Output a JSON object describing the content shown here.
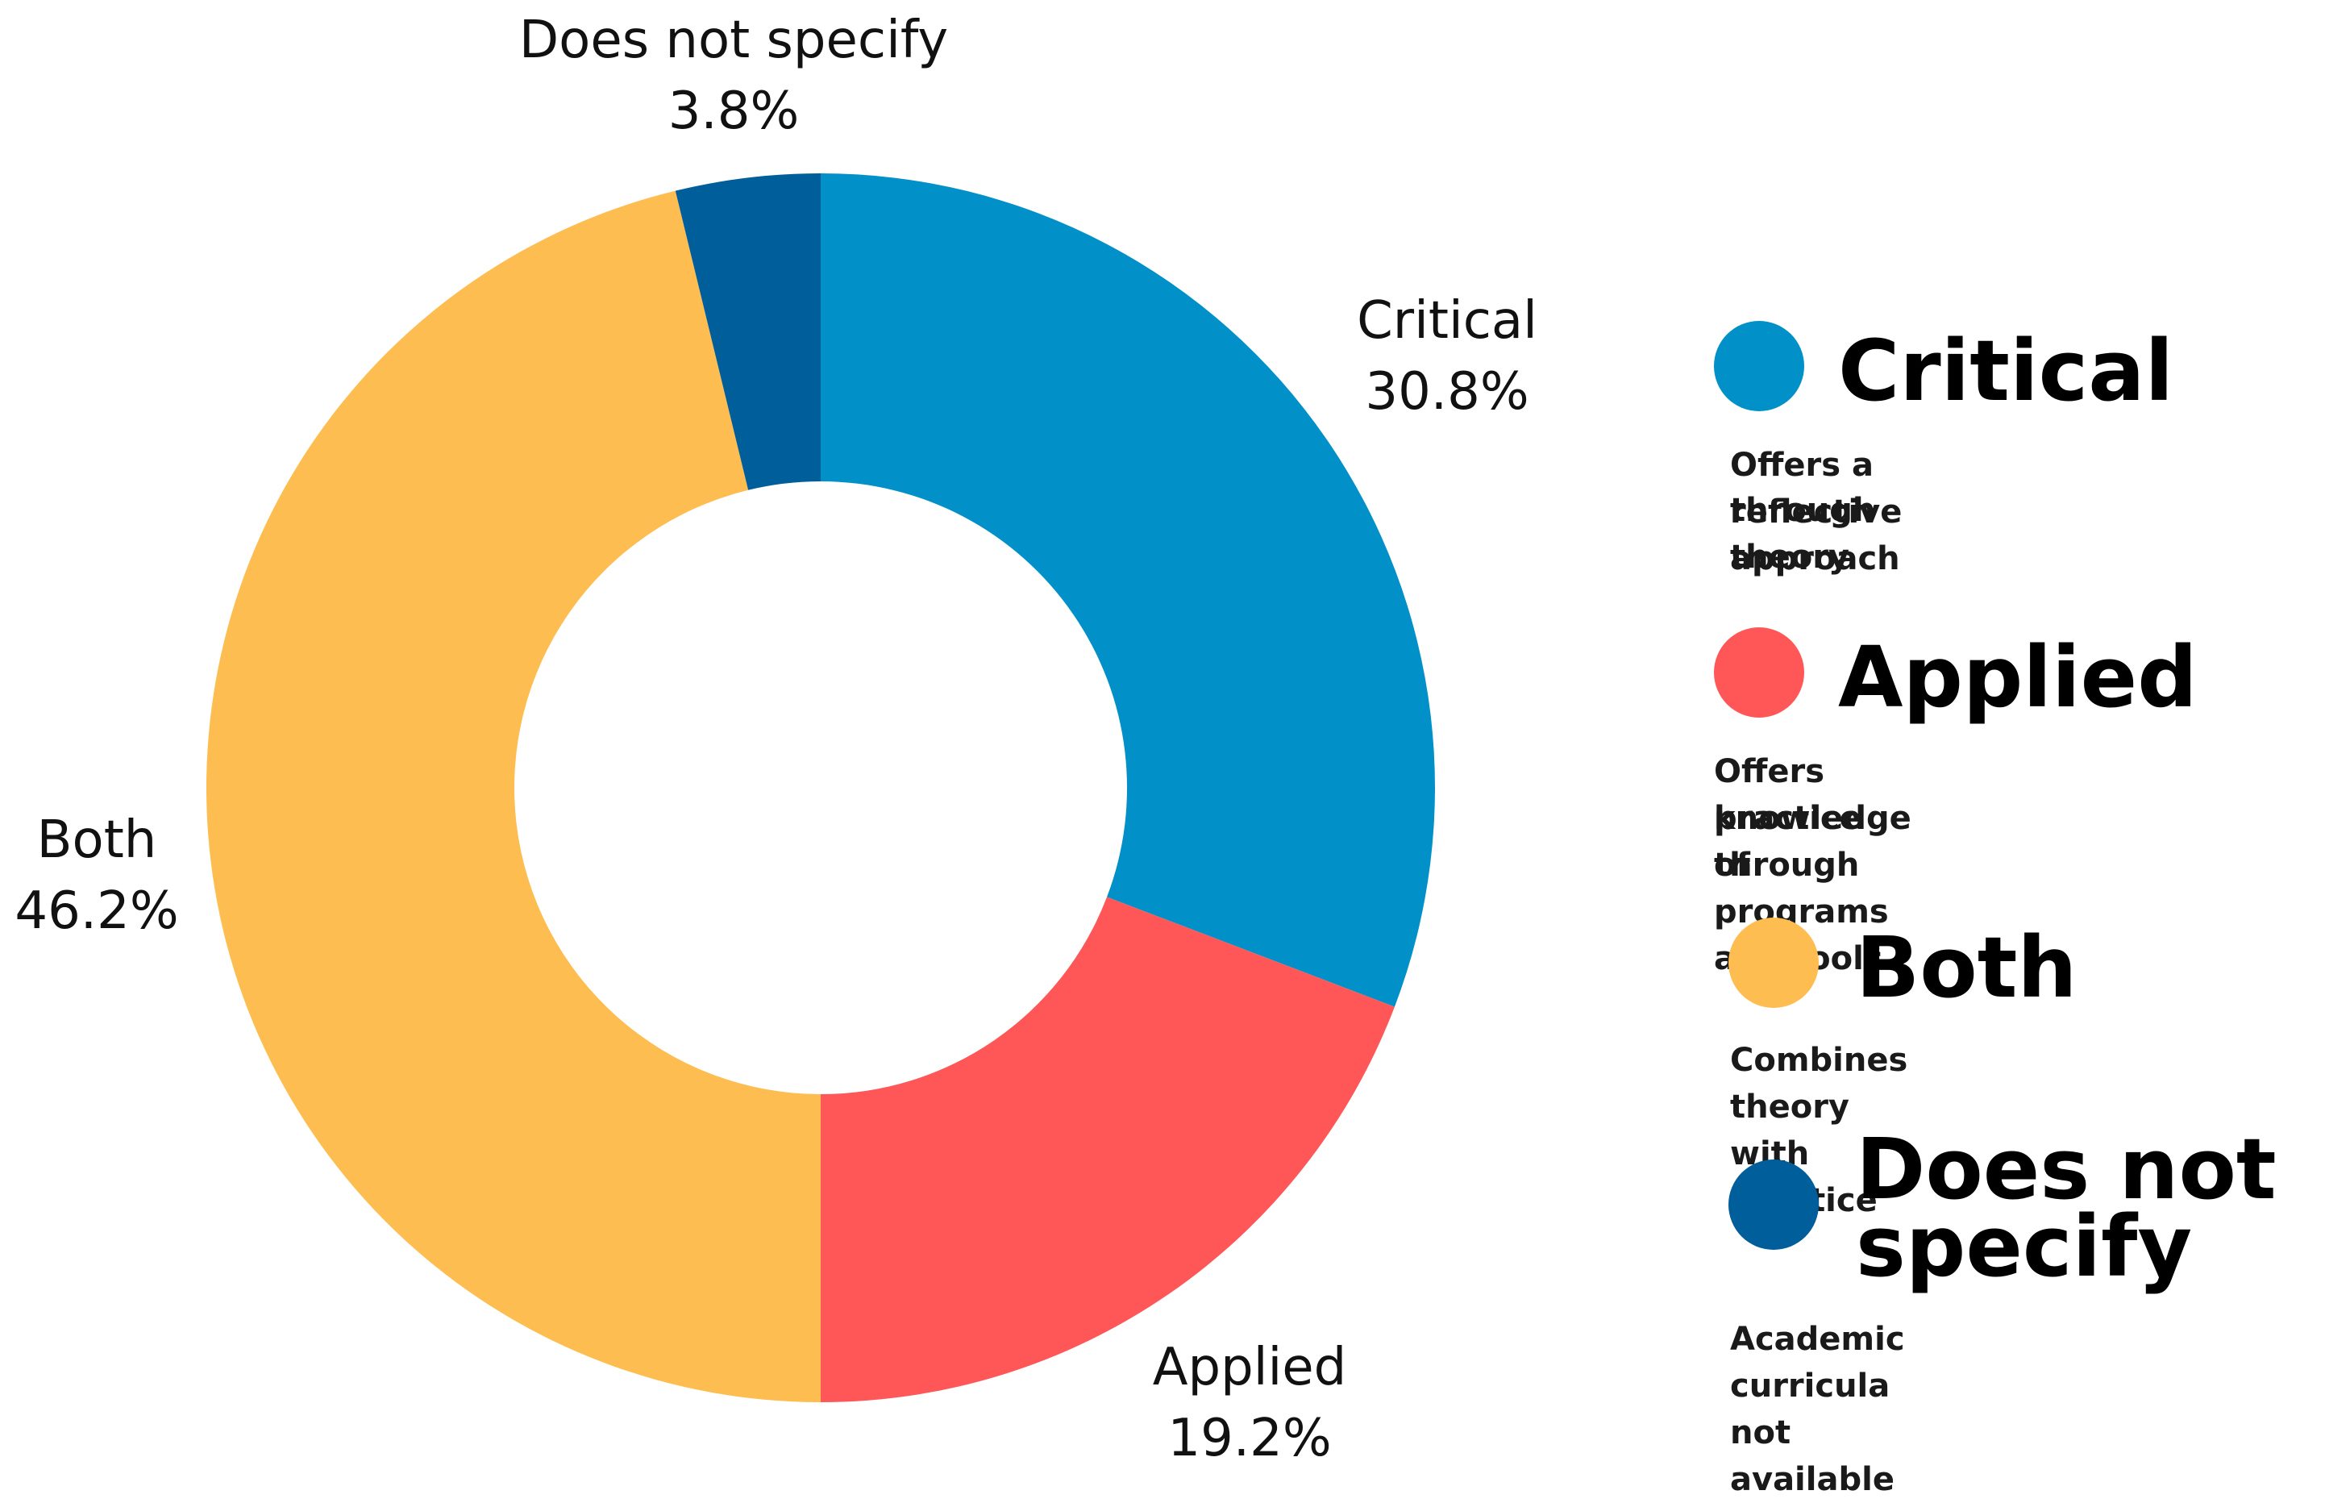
{
  "chart_data": {
    "type": "pie",
    "variant": "donut",
    "categories": [
      "Critical",
      "Applied",
      "Both",
      "Does not specify"
    ],
    "values": [
      30.8,
      19.2,
      46.2,
      3.8
    ],
    "value_labels": [
      "30.8%",
      "19.2%",
      "46.2%",
      "3.8%"
    ],
    "colors": [
      "#0290C8",
      "#FF5757",
      "#FDBD50",
      "#005E9A"
    ],
    "start": "top, clockwise",
    "legend_position": "right"
  },
  "labels": {
    "critical": {
      "name": "Critical",
      "value": "30.8%"
    },
    "applied": {
      "name": "Applied",
      "value": "19.2%"
    },
    "both": {
      "name": "Both",
      "value": "46.2%"
    },
    "unspecified": {
      "name": "Does not specify",
      "value": "3.8%"
    }
  },
  "legend": {
    "critical": {
      "title": "Critical",
      "desc_line1": "Offers a reflective approach",
      "desc_line2": "through theory",
      "color": "#0290C8"
    },
    "applied": {
      "title": "Applied",
      "desc_line1": "Offers knowledge through",
      "desc_line2": "practice of programs and tools",
      "color": "#FF5757"
    },
    "both": {
      "title": "Both",
      "desc_line1": "Combines theory with practice",
      "color": "#FDBD50"
    },
    "unspecified": {
      "title_line1": "Does not",
      "title_line2": "specify",
      "desc_line1": "Academic curricula not available",
      "color": "#005E9A"
    }
  }
}
